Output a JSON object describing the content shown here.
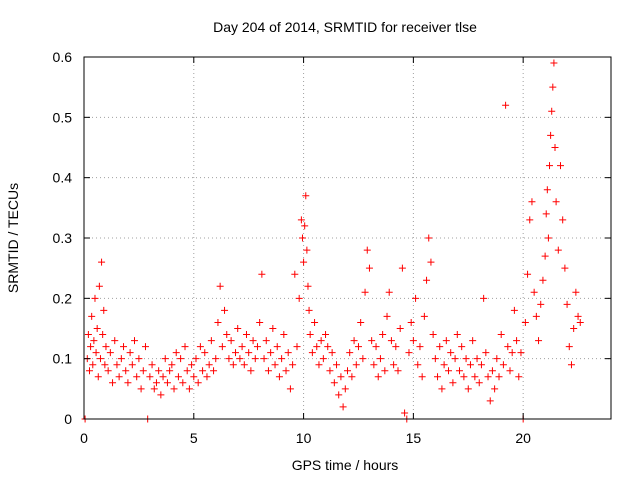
{
  "chart_data": {
    "type": "scatter",
    "title": "Day 204 of 2014, SRMTID for receiver tlse",
    "xlabel": "GPS time / hours",
    "ylabel": "SRMTID / TECUs",
    "xlim": [
      0,
      24
    ],
    "ylim": [
      0,
      0.6
    ],
    "xticks": [
      0,
      5,
      10,
      15,
      20
    ],
    "yticks": [
      0,
      0.1,
      0.2,
      0.3,
      0.4,
      0.5,
      0.6
    ],
    "xtick_labels": [
      "0",
      "5",
      "10",
      "15",
      "20"
    ],
    "ytick_labels": [
      "0",
      "0.1",
      "0.2",
      "0.3",
      "0.4",
      "0.5",
      "0.6"
    ],
    "grid": true,
    "marker": "+",
    "color": "#ff0000",
    "series": [
      {
        "name": "SRMTID",
        "points": [
          [
            0.05,
            0.0
          ],
          [
            0.15,
            0.1
          ],
          [
            0.2,
            0.14
          ],
          [
            0.25,
            0.08
          ],
          [
            0.3,
            0.12
          ],
          [
            0.35,
            0.17
          ],
          [
            0.4,
            0.09
          ],
          [
            0.45,
            0.13
          ],
          [
            0.5,
            0.2
          ],
          [
            0.55,
            0.11
          ],
          [
            0.6,
            0.15
          ],
          [
            0.65,
            0.07
          ],
          [
            0.7,
            0.22
          ],
          [
            0.75,
            0.1
          ],
          [
            0.8,
            0.26
          ],
          [
            0.85,
            0.14
          ],
          [
            0.9,
            0.18
          ],
          [
            0.95,
            0.09
          ],
          [
            1.0,
            0.12
          ],
          [
            1.1,
            0.08
          ],
          [
            1.2,
            0.11
          ],
          [
            1.3,
            0.06
          ],
          [
            1.4,
            0.13
          ],
          [
            1.5,
            0.09
          ],
          [
            1.6,
            0.07
          ],
          [
            1.7,
            0.1
          ],
          [
            1.8,
            0.12
          ],
          [
            1.9,
            0.08
          ],
          [
            2.0,
            0.06
          ],
          [
            2.1,
            0.11
          ],
          [
            2.2,
            0.09
          ],
          [
            2.3,
            0.13
          ],
          [
            2.4,
            0.07
          ],
          [
            2.5,
            0.1
          ],
          [
            2.6,
            0.05
          ],
          [
            2.7,
            0.08
          ],
          [
            2.8,
            0.12
          ],
          [
            2.9,
            0.0
          ],
          [
            3.0,
            0.07
          ],
          [
            3.1,
            0.09
          ],
          [
            3.2,
            0.05
          ],
          [
            3.3,
            0.06
          ],
          [
            3.4,
            0.08
          ],
          [
            3.5,
            0.04
          ],
          [
            3.6,
            0.07
          ],
          [
            3.7,
            0.1
          ],
          [
            3.8,
            0.06
          ],
          [
            3.9,
            0.08
          ],
          [
            4.0,
            0.09
          ],
          [
            4.1,
            0.05
          ],
          [
            4.2,
            0.11
          ],
          [
            4.3,
            0.07
          ],
          [
            4.4,
            0.1
          ],
          [
            4.5,
            0.06
          ],
          [
            4.6,
            0.12
          ],
          [
            4.7,
            0.08
          ],
          [
            4.8,
            0.05
          ],
          [
            4.9,
            0.09
          ],
          [
            5.0,
            0.07
          ],
          [
            5.1,
            0.1
          ],
          [
            5.2,
            0.06
          ],
          [
            5.3,
            0.12
          ],
          [
            5.4,
            0.08
          ],
          [
            5.5,
            0.11
          ],
          [
            5.6,
            0.07
          ],
          [
            5.7,
            0.09
          ],
          [
            5.8,
            0.13
          ],
          [
            5.9,
            0.08
          ],
          [
            6.0,
            0.1
          ],
          [
            6.1,
            0.16
          ],
          [
            6.2,
            0.22
          ],
          [
            6.3,
            0.12
          ],
          [
            6.4,
            0.18
          ],
          [
            6.5,
            0.14
          ],
          [
            6.6,
            0.1
          ],
          [
            6.7,
            0.13
          ],
          [
            6.8,
            0.09
          ],
          [
            6.9,
            0.11
          ],
          [
            7.0,
            0.15
          ],
          [
            7.1,
            0.1
          ],
          [
            7.2,
            0.12
          ],
          [
            7.3,
            0.09
          ],
          [
            7.4,
            0.14
          ],
          [
            7.5,
            0.11
          ],
          [
            7.6,
            0.08
          ],
          [
            7.7,
            0.13
          ],
          [
            7.8,
            0.1
          ],
          [
            7.9,
            0.12
          ],
          [
            8.0,
            0.16
          ],
          [
            8.1,
            0.24
          ],
          [
            8.2,
            0.1
          ],
          [
            8.3,
            0.13
          ],
          [
            8.4,
            0.08
          ],
          [
            8.5,
            0.11
          ],
          [
            8.6,
            0.15
          ],
          [
            8.7,
            0.09
          ],
          [
            8.8,
            0.12
          ],
          [
            8.9,
            0.07
          ],
          [
            9.0,
            0.1
          ],
          [
            9.1,
            0.14
          ],
          [
            9.2,
            0.08
          ],
          [
            9.3,
            0.11
          ],
          [
            9.4,
            0.05
          ],
          [
            9.5,
            0.09
          ],
          [
            9.6,
            0.24
          ],
          [
            9.7,
            0.12
          ],
          [
            9.8,
            0.2
          ],
          [
            9.9,
            0.33
          ],
          [
            9.95,
            0.3
          ],
          [
            10.0,
            0.26
          ],
          [
            10.05,
            0.32
          ],
          [
            10.1,
            0.37
          ],
          [
            10.15,
            0.28
          ],
          [
            10.2,
            0.22
          ],
          [
            10.25,
            0.18
          ],
          [
            10.3,
            0.14
          ],
          [
            10.4,
            0.11
          ],
          [
            10.5,
            0.16
          ],
          [
            10.6,
            0.12
          ],
          [
            10.7,
            0.09
          ],
          [
            10.8,
            0.13
          ],
          [
            10.9,
            0.1
          ],
          [
            11.0,
            0.14
          ],
          [
            11.1,
            0.12
          ],
          [
            11.2,
            0.08
          ],
          [
            11.3,
            0.11
          ],
          [
            11.4,
            0.06
          ],
          [
            11.5,
            0.09
          ],
          [
            11.6,
            0.04
          ],
          [
            11.7,
            0.07
          ],
          [
            11.8,
            0.02
          ],
          [
            11.9,
            0.05
          ],
          [
            12.0,
            0.08
          ],
          [
            12.1,
            0.11
          ],
          [
            12.2,
            0.07
          ],
          [
            12.3,
            0.13
          ],
          [
            12.4,
            0.09
          ],
          [
            12.5,
            0.12
          ],
          [
            12.6,
            0.16
          ],
          [
            12.7,
            0.1
          ],
          [
            12.8,
            0.21
          ],
          [
            12.9,
            0.28
          ],
          [
            13.0,
            0.25
          ],
          [
            13.1,
            0.13
          ],
          [
            13.2,
            0.09
          ],
          [
            13.3,
            0.12
          ],
          [
            13.4,
            0.07
          ],
          [
            13.5,
            0.1
          ],
          [
            13.6,
            0.14
          ],
          [
            13.7,
            0.08
          ],
          [
            13.8,
            0.17
          ],
          [
            13.9,
            0.21
          ],
          [
            14.0,
            0.13
          ],
          [
            14.1,
            0.09
          ],
          [
            14.2,
            0.12
          ],
          [
            14.3,
            0.08
          ],
          [
            14.4,
            0.15
          ],
          [
            14.5,
            0.25
          ],
          [
            14.6,
            0.01
          ],
          [
            14.7,
            0.0
          ],
          [
            14.8,
            0.11
          ],
          [
            14.9,
            0.16
          ],
          [
            15.0,
            0.13
          ],
          [
            15.1,
            0.2
          ],
          [
            15.2,
            0.09
          ],
          [
            15.3,
            0.12
          ],
          [
            15.4,
            0.07
          ],
          [
            15.5,
            0.17
          ],
          [
            15.6,
            0.23
          ],
          [
            15.7,
            0.3
          ],
          [
            15.8,
            0.26
          ],
          [
            15.9,
            0.14
          ],
          [
            16.0,
            0.1
          ],
          [
            16.1,
            0.07
          ],
          [
            16.2,
            0.12
          ],
          [
            16.3,
            0.05
          ],
          [
            16.4,
            0.09
          ],
          [
            16.5,
            0.13
          ],
          [
            16.6,
            0.08
          ],
          [
            16.7,
            0.11
          ],
          [
            16.8,
            0.06
          ],
          [
            16.9,
            0.1
          ],
          [
            17.0,
            0.14
          ],
          [
            17.1,
            0.08
          ],
          [
            17.2,
            0.12
          ],
          [
            17.3,
            0.07
          ],
          [
            17.4,
            0.1
          ],
          [
            17.5,
            0.05
          ],
          [
            17.6,
            0.09
          ],
          [
            17.7,
            0.13
          ],
          [
            17.8,
            0.07
          ],
          [
            17.9,
            0.1
          ],
          [
            18.0,
            0.06
          ],
          [
            18.1,
            0.09
          ],
          [
            18.2,
            0.2
          ],
          [
            18.3,
            0.11
          ],
          [
            18.4,
            0.07
          ],
          [
            18.5,
            0.03
          ],
          [
            18.6,
            0.08
          ],
          [
            18.7,
            0.05
          ],
          [
            18.8,
            0.1
          ],
          [
            18.9,
            0.07
          ],
          [
            19.0,
            0.14
          ],
          [
            19.1,
            0.09
          ],
          [
            19.2,
            0.52
          ],
          [
            19.3,
            0.12
          ],
          [
            19.4,
            0.08
          ],
          [
            19.5,
            0.11
          ],
          [
            19.6,
            0.18
          ],
          [
            19.7,
            0.13
          ],
          [
            19.8,
            0.07
          ],
          [
            19.9,
            0.11
          ],
          [
            20.0,
            0.0
          ],
          [
            20.1,
            0.16
          ],
          [
            20.2,
            0.24
          ],
          [
            20.3,
            0.33
          ],
          [
            20.4,
            0.36
          ],
          [
            20.5,
            0.21
          ],
          [
            20.6,
            0.17
          ],
          [
            20.7,
            0.13
          ],
          [
            20.8,
            0.19
          ],
          [
            20.9,
            0.23
          ],
          [
            21.0,
            0.27
          ],
          [
            21.05,
            0.34
          ],
          [
            21.1,
            0.38
          ],
          [
            21.15,
            0.3
          ],
          [
            21.2,
            0.42
          ],
          [
            21.25,
            0.47
          ],
          [
            21.3,
            0.51
          ],
          [
            21.35,
            0.55
          ],
          [
            21.4,
            0.59
          ],
          [
            21.45,
            0.45
          ],
          [
            21.5,
            0.36
          ],
          [
            21.6,
            0.28
          ],
          [
            21.7,
            0.42
          ],
          [
            21.8,
            0.33
          ],
          [
            21.9,
            0.25
          ],
          [
            22.0,
            0.19
          ],
          [
            22.1,
            0.12
          ],
          [
            22.2,
            0.09
          ],
          [
            22.3,
            0.15
          ],
          [
            22.4,
            0.21
          ],
          [
            22.5,
            0.17
          ],
          [
            22.6,
            0.16
          ]
        ]
      }
    ]
  }
}
